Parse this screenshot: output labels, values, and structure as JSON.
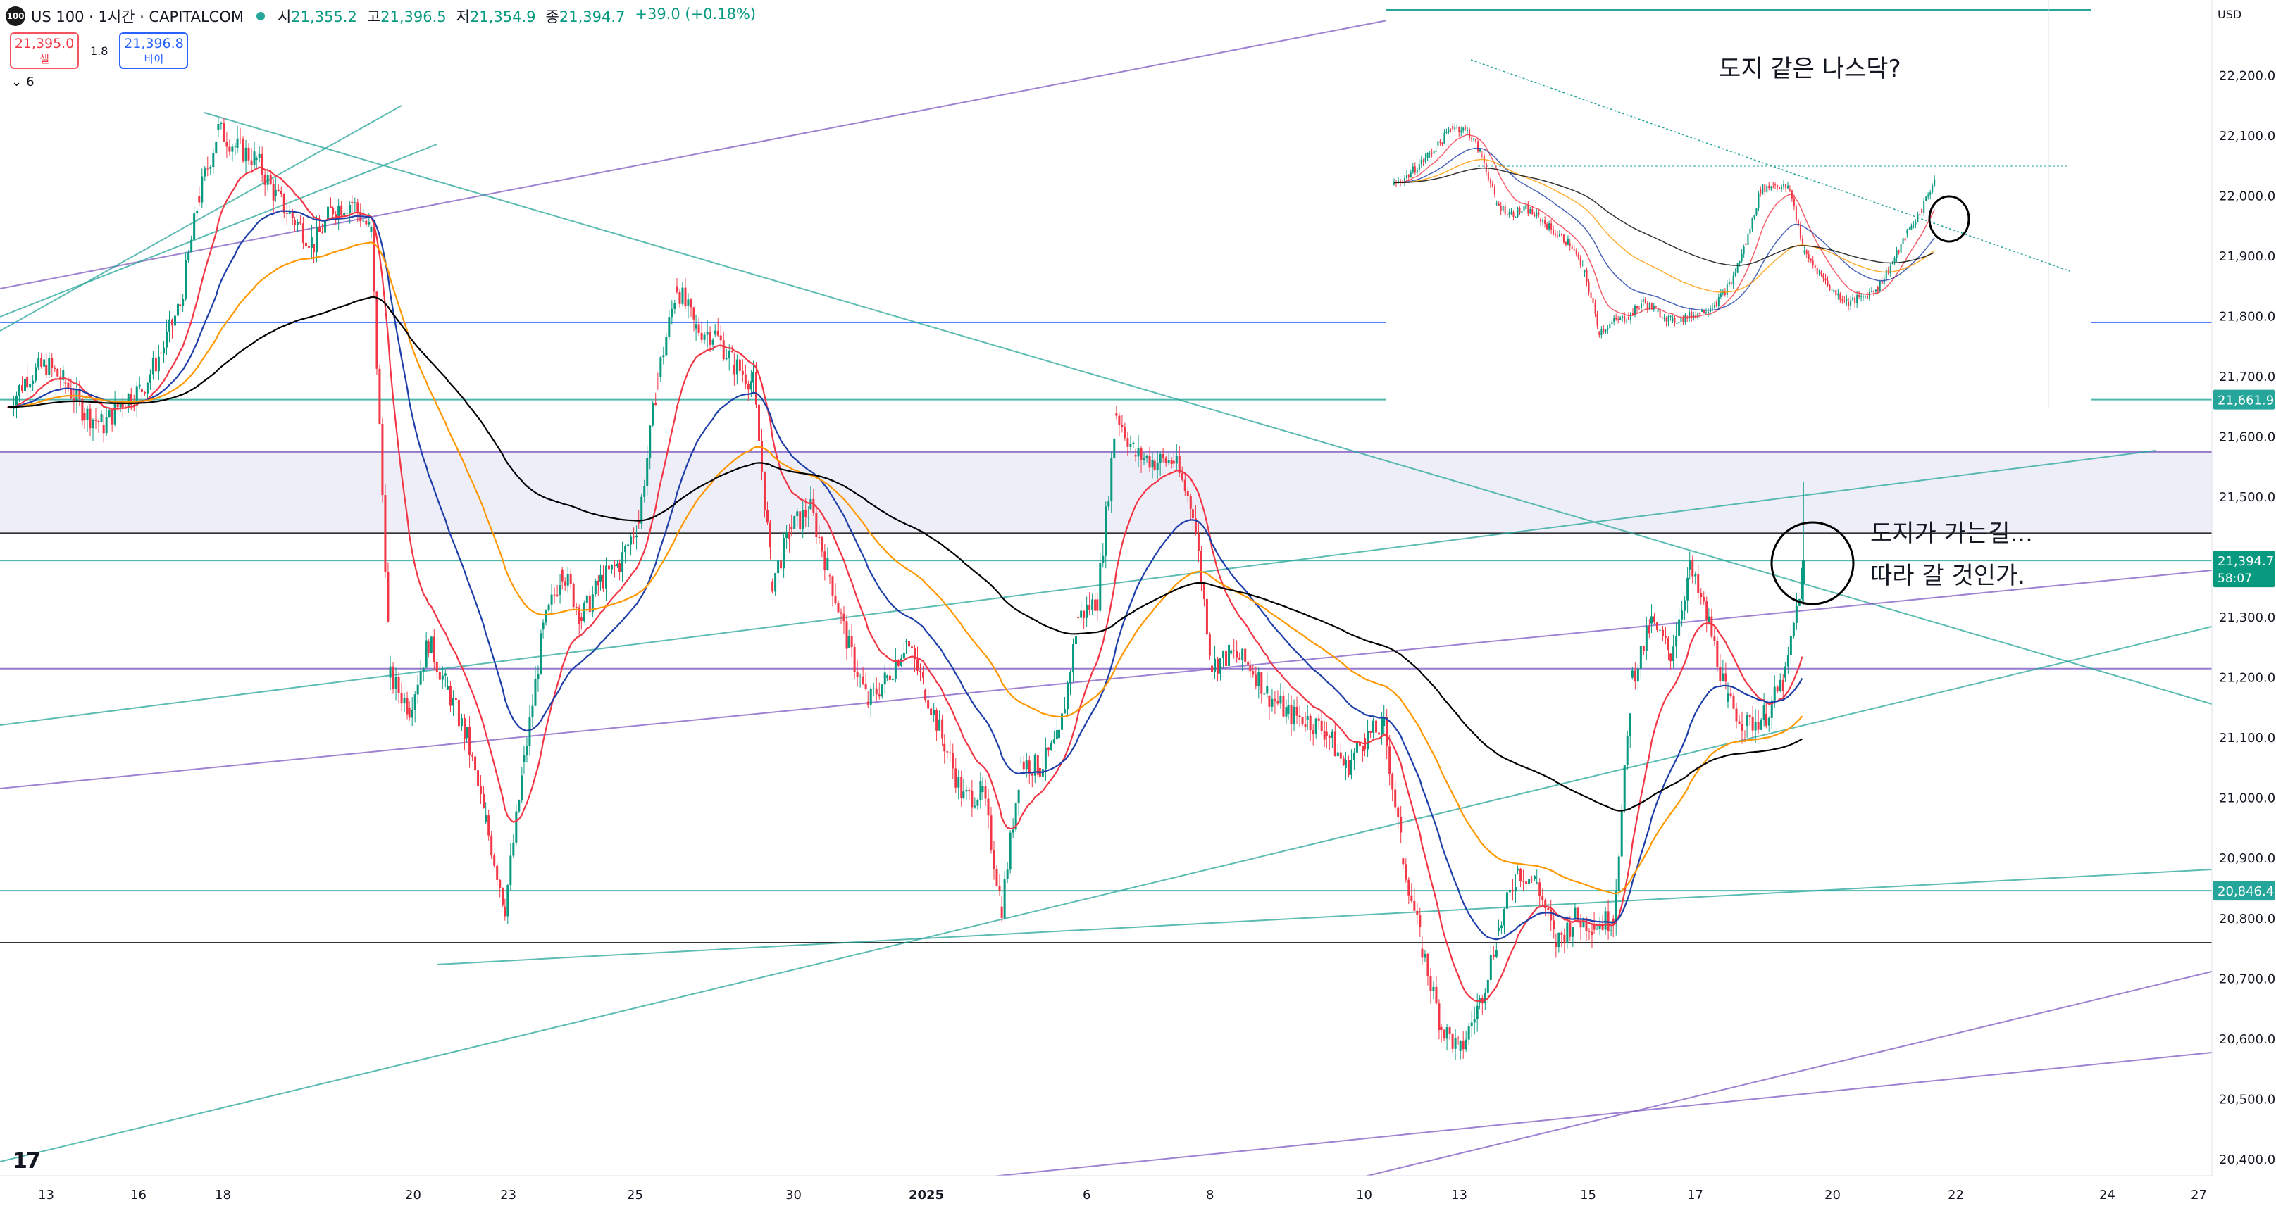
{
  "header": {
    "symbol_badge": "100",
    "title": "US 100 · 1시간 · CAPITALCOM",
    "open_label": "시",
    "open": "21,355.2",
    "high_label": "고",
    "high": "21,396.5",
    "low_label": "저",
    "low": "21,354.9",
    "close_label": "종",
    "close": "21,394.7",
    "change": "+39.0 (+0.18%)"
  },
  "trade": {
    "sell_price": "21,395.0",
    "sell_label": "셀",
    "spread": "1.8",
    "buy_price": "21,396.8",
    "buy_label": "바이"
  },
  "indicator_toggle": {
    "count": "6"
  },
  "notes": {
    "main_note_line1": "도지가 가는길...",
    "main_note_line2": "따라 갈 것인가.",
    "inset_note": "도지 같은 나스닥?"
  },
  "currency": "USD",
  "colors": {
    "up": "#089981",
    "down": "#f23645",
    "ema_fast": "#f23645",
    "ema_mid": "#1e3fa8",
    "ema_slow": "#ff9800",
    "ma_long": "#000000",
    "trend_teal": "#26a69a",
    "trend_purple": "#7e57c2",
    "zone_fill": "#e8eaf6"
  },
  "chart_data": {
    "type": "candlestick",
    "symbol": "US 100",
    "interval": "1시간",
    "source": "CAPITALCOM",
    "ylim": [
      20350,
      22300
    ],
    "y_ticks": [
      "22,200.0",
      "22,100.0",
      "22,000.0",
      "21,900.0",
      "21,800.0",
      "21,700.0",
      "21,600.0",
      "21,500.0",
      "21,300.0",
      "21,200.0",
      "21,100.0",
      "21,000.0",
      "20,900.0",
      "20,800.0",
      "20,700.0",
      "20,600.0",
      "20,500.0",
      "20,400.0"
    ],
    "x_ticks": [
      "13",
      "16",
      "18",
      "20",
      "23",
      "25",
      "30",
      "2025",
      "6",
      "8",
      "10",
      "13",
      "15",
      "17",
      "20",
      "22",
      "24",
      "27"
    ],
    "price_labels": [
      {
        "value": 21661.9,
        "text": "21,661.9",
        "color": "#26a69a"
      },
      {
        "value": 21394.7,
        "text": "21,394.7",
        "sub": "58:07",
        "color": "#089981"
      },
      {
        "value": 20846.4,
        "text": "20,846.4",
        "color": "#26a69a"
      }
    ],
    "horizontal_levels": [
      {
        "value": 21790,
        "color": "#2962ff"
      },
      {
        "value": 21661.9,
        "color": "#26a69a"
      },
      {
        "value": 21575,
        "color": "#7e57c2"
      },
      {
        "value": 21440,
        "color": "#000000"
      },
      {
        "value": 21394.7,
        "color": "#26a69a"
      },
      {
        "value": 21215,
        "color": "#7e57c2"
      },
      {
        "value": 20846.4,
        "color": "#26a69a"
      },
      {
        "value": 20760,
        "color": "#000000"
      }
    ],
    "zone": [
      21440,
      21575
    ],
    "path_points": [
      [
        0,
        21650
      ],
      [
        1,
        21700
      ],
      [
        2,
        21720
      ],
      [
        3,
        21690
      ],
      [
        4,
        21640
      ],
      [
        5,
        21620
      ],
      [
        6,
        21660
      ],
      [
        7,
        21680
      ],
      [
        8,
        21740
      ],
      [
        9,
        21820
      ],
      [
        10,
        22000
      ],
      [
        11,
        22110
      ],
      [
        12,
        22080
      ],
      [
        13,
        22060
      ],
      [
        14,
        22000
      ],
      [
        15,
        21960
      ],
      [
        16,
        21920
      ],
      [
        17,
        21980
      ],
      [
        18,
        21990
      ],
      [
        19,
        21940
      ],
      [
        20,
        21200
      ],
      [
        21,
        21150
      ],
      [
        22,
        21260
      ],
      [
        23,
        21180
      ],
      [
        24,
        21100
      ],
      [
        25,
        20960
      ],
      [
        26,
        20820
      ],
      [
        27,
        21060
      ],
      [
        28,
        21280
      ],
      [
        29,
        21380
      ],
      [
        30,
        21300
      ],
      [
        31,
        21360
      ],
      [
        32,
        21390
      ],
      [
        33,
        21460
      ],
      [
        34,
        21700
      ],
      [
        35,
        21850
      ],
      [
        36,
        21780
      ],
      [
        37,
        21770
      ],
      [
        38,
        21720
      ],
      [
        39,
        21690
      ],
      [
        40,
        21360
      ],
      [
        41,
        21450
      ],
      [
        42,
        21480
      ],
      [
        43,
        21370
      ],
      [
        44,
        21250
      ],
      [
        45,
        21160
      ],
      [
        46,
        21200
      ],
      [
        47,
        21260
      ],
      [
        48,
        21180
      ],
      [
        49,
        21090
      ],
      [
        50,
        21000
      ],
      [
        51,
        21010
      ],
      [
        52,
        20820
      ],
      [
        53,
        21060
      ],
      [
        54,
        21050
      ],
      [
        55,
        21100
      ],
      [
        56,
        21300
      ],
      [
        57,
        21330
      ],
      [
        58,
        21640
      ],
      [
        59,
        21570
      ],
      [
        60,
        21560
      ],
      [
        61,
        21560
      ],
      [
        62,
        21480
      ],
      [
        63,
        21220
      ],
      [
        64,
        21240
      ],
      [
        65,
        21220
      ],
      [
        66,
        21170
      ],
      [
        67,
        21140
      ],
      [
        68,
        21130
      ],
      [
        69,
        21110
      ],
      [
        70,
        21050
      ],
      [
        71,
        21100
      ],
      [
        72,
        21120
      ],
      [
        73,
        20900
      ],
      [
        74,
        20750
      ],
      [
        75,
        20620
      ],
      [
        76,
        20580
      ],
      [
        77,
        20660
      ],
      [
        78,
        20780
      ],
      [
        79,
        20880
      ],
      [
        80,
        20860
      ],
      [
        81,
        20760
      ],
      [
        82,
        20800
      ],
      [
        83,
        20790
      ],
      [
        84,
        20800
      ],
      [
        85,
        21200
      ],
      [
        86,
        21290
      ],
      [
        87,
        21240
      ],
      [
        88,
        21380
      ],
      [
        89,
        21290
      ],
      [
        90,
        21160
      ],
      [
        91,
        21120
      ],
      [
        92,
        21140
      ],
      [
        93,
        21200
      ],
      [
        94,
        21394.7
      ]
    ],
    "moving_averages": [
      {
        "color": "#f23645",
        "role": "fast"
      },
      {
        "color": "#1e3fa8",
        "role": "mid"
      },
      {
        "color": "#ff9800",
        "role": "slow"
      },
      {
        "color": "#000000",
        "role": "long"
      }
    ],
    "inset": {
      "ylim": [
        21600,
        22320
      ],
      "path_points": [
        [
          0,
          22000
        ],
        [
          1,
          22020
        ],
        [
          2,
          22050
        ],
        [
          3,
          22080
        ],
        [
          4,
          22120
        ],
        [
          5,
          22110
        ],
        [
          6,
          22060
        ],
        [
          7,
          21960
        ],
        [
          8,
          21940
        ],
        [
          9,
          21950
        ],
        [
          10,
          21930
        ],
        [
          11,
          21900
        ],
        [
          12,
          21880
        ],
        [
          13,
          21820
        ],
        [
          14,
          21700
        ],
        [
          15,
          21720
        ],
        [
          16,
          21730
        ],
        [
          17,
          21760
        ],
        [
          18,
          21740
        ],
        [
          19,
          21720
        ],
        [
          20,
          21730
        ],
        [
          21,
          21740
        ],
        [
          22,
          21760
        ],
        [
          23,
          21800
        ],
        [
          24,
          21880
        ],
        [
          25,
          21990
        ],
        [
          26,
          22000
        ],
        [
          27,
          21990
        ],
        [
          28,
          21860
        ],
        [
          29,
          21820
        ],
        [
          30,
          21780
        ],
        [
          31,
          21760
        ],
        [
          32,
          21770
        ],
        [
          33,
          21790
        ],
        [
          34,
          21840
        ],
        [
          35,
          21900
        ],
        [
          36,
          21950
        ],
        [
          37,
          22020
        ]
      ]
    }
  }
}
